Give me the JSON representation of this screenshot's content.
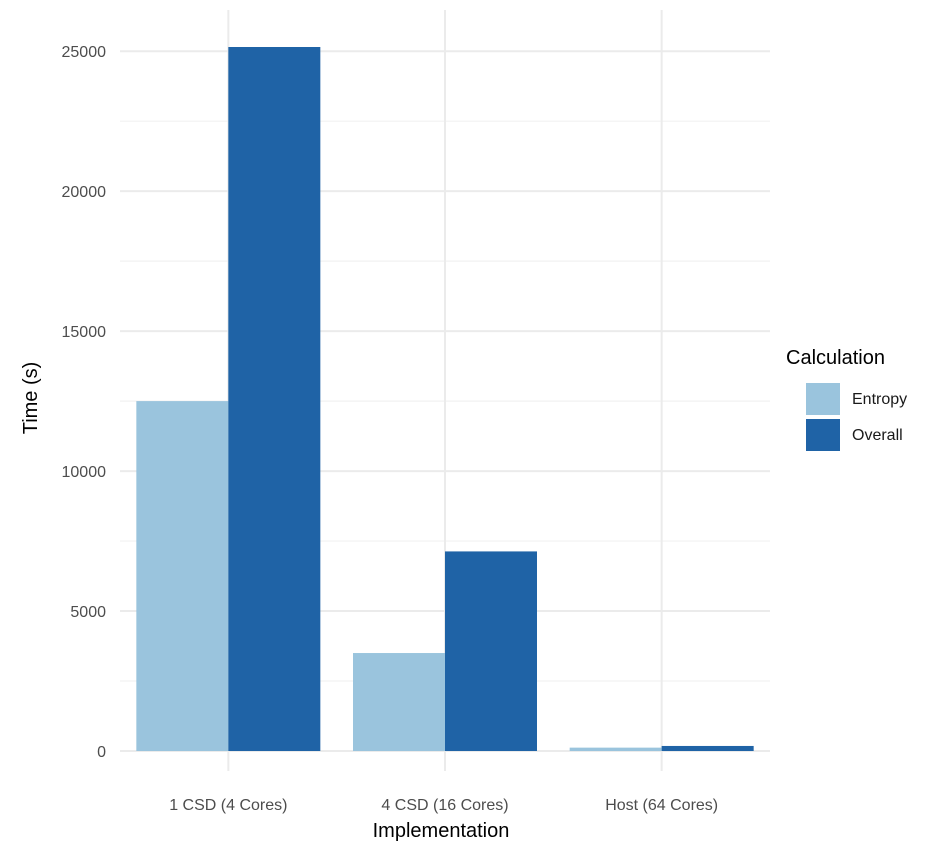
{
  "chart_data": {
    "type": "bar",
    "categories": [
      "1 CSD (4 Cores)",
      "4 CSD (16 Cores)",
      "Host (64 Cores)"
    ],
    "series": [
      {
        "name": "Entropy",
        "values": [
          12500,
          3500,
          120
        ]
      },
      {
        "name": "Overall",
        "values": [
          25150,
          7130,
          180
        ]
      }
    ],
    "xlabel": "Implementation",
    "ylabel": "Time (s)",
    "ylim": [
      0,
      25200
    ],
    "yticks": [
      0,
      5000,
      10000,
      15000,
      20000,
      25000
    ],
    "ytick_labels": [
      "0",
      "5000",
      "10000",
      "15000",
      "20000",
      "25000"
    ],
    "legend": {
      "title": "Calculation",
      "position": "right",
      "entries": [
        "Entropy",
        "Overall"
      ]
    },
    "colors": {
      "Entropy": "#9ac4dd",
      "Overall": "#1f63a6",
      "grid": "#ebebeb"
    },
    "grid": true
  }
}
